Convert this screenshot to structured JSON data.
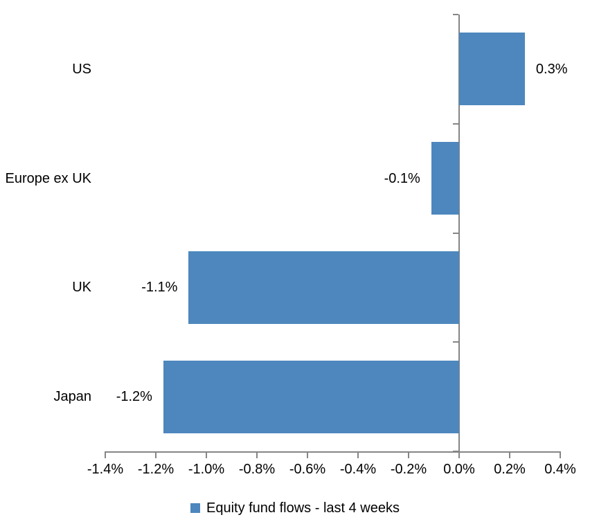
{
  "chart_data": {
    "type": "bar",
    "orientation": "horizontal",
    "title": "",
    "categories": [
      "US",
      "Europe ex UK",
      "UK",
      "Japan"
    ],
    "series": [
      {
        "name": "Equity fund flows - last 4 weeks",
        "values": [
          0.26,
          -0.11,
          -1.07,
          -1.17
        ],
        "data_labels": [
          "0.3%",
          "-0.1%",
          "-1.1%",
          "-1.2%"
        ]
      }
    ],
    "xlim": [
      -1.4,
      0.4
    ],
    "x_tick_step": 0.2,
    "x_tick_labels": [
      "-1.4%",
      "-1.2%",
      "-1.0%",
      "-0.8%",
      "-0.6%",
      "-0.4%",
      "-0.2%",
      "0.0%",
      "0.2%",
      "0.4%"
    ],
    "grid": false,
    "legend_position": "bottom",
    "colors": {
      "bar": "#4D87BD",
      "axis": "#858585",
      "text": "#000000",
      "background": "#FFFFFF"
    }
  },
  "legend": {
    "label": "Equity fund flows - last 4 weeks"
  }
}
